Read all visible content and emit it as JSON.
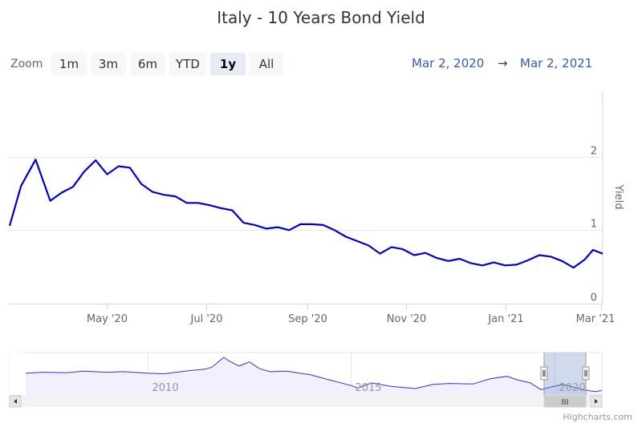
{
  "title": "Italy - 10 Years Bond Yield",
  "zoom": {
    "label": "Zoom",
    "buttons": [
      "1m",
      "3m",
      "6m",
      "YTD",
      "1y",
      "All"
    ],
    "active": "1y"
  },
  "range": {
    "from": "Mar 2, 2020",
    "arrow": "→",
    "to": "Mar 2, 2021"
  },
  "credits": "Highcharts.com",
  "colors": {
    "series": "#0000cc",
    "navigator_mask": "#ccd6eb",
    "grid": "#e6e6e6"
  },
  "chart_data": {
    "type": "line",
    "title": "Italy - 10 Years Bond Yield",
    "xlabel": "",
    "ylabel": "Yield",
    "ylim": [
      0,
      2.9
    ],
    "yticks": [
      0,
      1,
      2
    ],
    "xlim": [
      "2020-03-02",
      "2021-03-02"
    ],
    "xticks": [
      {
        "date": "2020-05-01",
        "label": "May '20"
      },
      {
        "date": "2020-07-01",
        "label": "Jul '20"
      },
      {
        "date": "2020-09-01",
        "label": "Sep '20"
      },
      {
        "date": "2020-11-01",
        "label": "Nov '20"
      },
      {
        "date": "2021-01-01",
        "label": "Jan '21"
      },
      {
        "date": "2021-03-01",
        "label": "Mar '21"
      }
    ],
    "series": [
      {
        "name": "Yield",
        "points": [
          [
            "2020-03-02",
            1.06
          ],
          [
            "2020-03-09",
            1.6
          ],
          [
            "2020-03-18",
            1.96
          ],
          [
            "2020-03-27",
            1.4
          ],
          [
            "2020-04-03",
            1.51
          ],
          [
            "2020-04-10",
            1.59
          ],
          [
            "2020-04-17",
            1.8
          ],
          [
            "2020-04-24",
            1.95
          ],
          [
            "2020-05-01",
            1.76
          ],
          [
            "2020-05-08",
            1.87
          ],
          [
            "2020-05-15",
            1.85
          ],
          [
            "2020-05-22",
            1.63
          ],
          [
            "2020-05-29",
            1.52
          ],
          [
            "2020-06-05",
            1.48
          ],
          [
            "2020-06-12",
            1.46
          ],
          [
            "2020-06-19",
            1.37
          ],
          [
            "2020-06-26",
            1.37
          ],
          [
            "2020-07-03",
            1.34
          ],
          [
            "2020-07-10",
            1.3
          ],
          [
            "2020-07-17",
            1.27
          ],
          [
            "2020-07-24",
            1.1
          ],
          [
            "2020-07-31",
            1.07
          ],
          [
            "2020-08-07",
            1.02
          ],
          [
            "2020-08-14",
            1.04
          ],
          [
            "2020-08-21",
            1.0
          ],
          [
            "2020-08-28",
            1.08
          ],
          [
            "2020-09-04",
            1.08
          ],
          [
            "2020-09-11",
            1.07
          ],
          [
            "2020-09-18",
            1.0
          ],
          [
            "2020-09-25",
            0.91
          ],
          [
            "2020-10-02",
            0.85
          ],
          [
            "2020-10-09",
            0.79
          ],
          [
            "2020-10-16",
            0.68
          ],
          [
            "2020-10-23",
            0.77
          ],
          [
            "2020-10-30",
            0.74
          ],
          [
            "2020-11-06",
            0.66
          ],
          [
            "2020-11-13",
            0.69
          ],
          [
            "2020-11-20",
            0.62
          ],
          [
            "2020-11-27",
            0.58
          ],
          [
            "2020-12-04",
            0.61
          ],
          [
            "2020-12-11",
            0.55
          ],
          [
            "2020-12-18",
            0.52
          ],
          [
            "2020-12-25",
            0.56
          ],
          [
            "2021-01-01",
            0.52
          ],
          [
            "2021-01-08",
            0.53
          ],
          [
            "2021-01-15",
            0.59
          ],
          [
            "2021-01-22",
            0.66
          ],
          [
            "2021-01-29",
            0.64
          ],
          [
            "2021-02-05",
            0.58
          ],
          [
            "2021-02-12",
            0.49
          ],
          [
            "2021-02-19",
            0.6
          ],
          [
            "2021-02-24",
            0.73
          ],
          [
            "2021-03-02",
            0.68
          ]
        ]
      }
    ],
    "navigator": {
      "xlim": [
        "2007-01-01",
        "2021-03-02"
      ],
      "labels": [
        {
          "date": "2010-01-01",
          "label": "2010"
        },
        {
          "date": "2015-01-01",
          "label": "2015"
        },
        {
          "date": "2020-01-01",
          "label": "2020"
        }
      ],
      "ylim": [
        0,
        8
      ],
      "points": [
        [
          "2007-01-01",
          4.1
        ],
        [
          "2007-06-01",
          4.3
        ],
        [
          "2008-01-01",
          4.2
        ],
        [
          "2008-06-01",
          4.5
        ],
        [
          "2009-01-01",
          4.3
        ],
        [
          "2009-06-01",
          4.4
        ],
        [
          "2010-01-01",
          4.1
        ],
        [
          "2010-06-01",
          4.0
        ],
        [
          "2011-01-01",
          4.6
        ],
        [
          "2011-06-01",
          4.9
        ],
        [
          "2011-08-01",
          5.3
        ],
        [
          "2011-11-15",
          7.2
        ],
        [
          "2012-01-01",
          6.5
        ],
        [
          "2012-04-01",
          5.5
        ],
        [
          "2012-07-01",
          6.3
        ],
        [
          "2012-10-01",
          5.0
        ],
        [
          "2013-01-01",
          4.4
        ],
        [
          "2013-06-01",
          4.5
        ],
        [
          "2014-01-01",
          3.8
        ],
        [
          "2014-06-01",
          2.9
        ],
        [
          "2015-01-01",
          1.7
        ],
        [
          "2015-03-01",
          1.2
        ],
        [
          "2015-07-01",
          2.2
        ],
        [
          "2016-01-01",
          1.5
        ],
        [
          "2016-08-01",
          1.1
        ],
        [
          "2017-01-01",
          1.9
        ],
        [
          "2017-06-01",
          2.1
        ],
        [
          "2018-01-01",
          2.0
        ],
        [
          "2018-06-01",
          3.0
        ],
        [
          "2018-11-01",
          3.5
        ],
        [
          "2019-02-01",
          2.8
        ],
        [
          "2019-06-01",
          2.2
        ],
        [
          "2019-09-01",
          0.9
        ],
        [
          "2019-12-01",
          1.4
        ],
        [
          "2020-03-18",
          1.9
        ],
        [
          "2020-07-01",
          1.3
        ],
        [
          "2020-10-01",
          0.8
        ],
        [
          "2021-01-01",
          0.5
        ],
        [
          "2021-03-02",
          0.7
        ]
      ]
    }
  }
}
